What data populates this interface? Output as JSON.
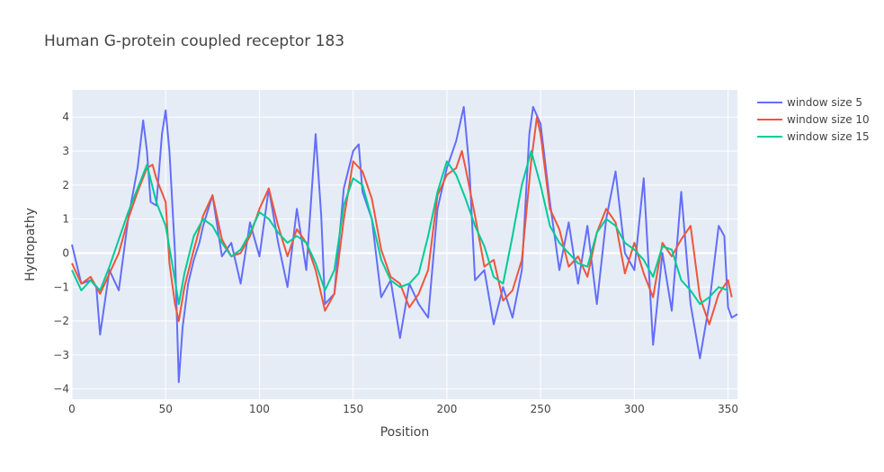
{
  "chart_data": {
    "type": "line",
    "title": "Human G-protein coupled receptor 183",
    "xlabel": "Position",
    "ylabel": "Hydropathy",
    "xlim": [
      0,
      355
    ],
    "ylim": [
      -4.3,
      4.8
    ],
    "xticks": [
      0,
      50,
      100,
      150,
      200,
      250,
      300,
      350
    ],
    "yticks": [
      -4,
      -3,
      -2,
      -1,
      0,
      1,
      2,
      3,
      4
    ],
    "grid": true,
    "legend_position": "top-right",
    "series": [
      {
        "name": "window size 5",
        "color": "#636efa",
        "x": [
          0,
          5,
          10,
          13,
          15,
          20,
          25,
          30,
          35,
          38,
          40,
          42,
          45,
          48,
          50,
          52,
          55,
          57,
          59,
          62,
          65,
          68,
          70,
          75,
          80,
          85,
          90,
          95,
          100,
          105,
          110,
          115,
          120,
          125,
          130,
          133,
          135,
          140,
          145,
          150,
          153,
          155,
          160,
          165,
          170,
          175,
          180,
          185,
          190,
          195,
          200,
          205,
          209,
          212,
          215,
          220,
          225,
          230,
          235,
          240,
          244,
          246,
          250,
          255,
          260,
          265,
          270,
          275,
          280,
          285,
          290,
          295,
          300,
          305,
          310,
          315,
          320,
          325,
          330,
          335,
          340,
          345,
          348,
          350,
          352,
          355
        ],
        "y": [
          0.25,
          -0.9,
          -0.8,
          -1.0,
          -2.4,
          -0.5,
          -1.1,
          1.0,
          2.5,
          3.9,
          3.0,
          1.5,
          1.4,
          3.5,
          4.2,
          3.0,
          0.0,
          -3.8,
          -2.2,
          -0.9,
          -0.2,
          0.3,
          0.8,
          1.7,
          -0.1,
          0.3,
          -0.9,
          0.9,
          -0.1,
          1.9,
          0.3,
          -1.0,
          1.3,
          -0.5,
          3.5,
          1.1,
          -1.5,
          -1.2,
          1.9,
          3.0,
          3.2,
          1.8,
          1.0,
          -1.3,
          -0.8,
          -2.5,
          -0.9,
          -1.5,
          -1.9,
          1.3,
          2.5,
          3.3,
          4.3,
          2.5,
          -0.8,
          -0.5,
          -2.1,
          -1.0,
          -1.9,
          -0.5,
          3.5,
          4.3,
          3.8,
          1.5,
          -0.5,
          0.9,
          -0.9,
          0.8,
          -1.5,
          1.0,
          2.4,
          0.0,
          -0.5,
          2.2,
          -2.7,
          0.0,
          -1.7,
          1.8,
          -1.5,
          -3.1,
          -1.5,
          0.8,
          0.5,
          -1.6,
          -1.9,
          -1.8
        ]
      },
      {
        "name": "window size 10",
        "color": "#ef553b",
        "x": [
          0,
          5,
          10,
          15,
          20,
          25,
          30,
          35,
          40,
          43,
          45,
          50,
          52,
          55,
          57,
          60,
          65,
          70,
          75,
          80,
          85,
          90,
          95,
          100,
          105,
          110,
          115,
          120,
          125,
          130,
          135,
          140,
          145,
          150,
          155,
          160,
          165,
          170,
          175,
          180,
          185,
          190,
          195,
          200,
          205,
          208,
          210,
          215,
          220,
          225,
          230,
          235,
          240,
          245,
          248,
          250,
          255,
          260,
          265,
          270,
          275,
          280,
          285,
          290,
          295,
          300,
          305,
          310,
          315,
          320,
          325,
          330,
          335,
          340,
          345,
          350,
          352
        ],
        "y": [
          -0.3,
          -0.9,
          -0.7,
          -1.2,
          -0.6,
          0.0,
          1.0,
          1.8,
          2.5,
          2.6,
          2.2,
          1.5,
          -0.3,
          -1.5,
          -2.0,
          -1.0,
          0.1,
          1.1,
          1.7,
          0.4,
          -0.1,
          0.0,
          0.5,
          1.3,
          1.9,
          0.8,
          -0.1,
          0.7,
          0.3,
          -0.5,
          -1.7,
          -1.2,
          1.0,
          2.7,
          2.4,
          1.6,
          0.1,
          -0.7,
          -0.9,
          -1.6,
          -1.2,
          -0.5,
          1.7,
          2.3,
          2.5,
          3.0,
          2.5,
          1.1,
          -0.4,
          -0.2,
          -1.4,
          -1.1,
          -0.2,
          2.7,
          4.0,
          3.5,
          1.3,
          0.7,
          -0.4,
          -0.1,
          -0.7,
          0.6,
          1.3,
          0.9,
          -0.6,
          0.3,
          -0.6,
          -1.3,
          0.3,
          -0.1,
          0.4,
          0.8,
          -1.3,
          -2.1,
          -1.2,
          -0.8,
          -1.3
        ]
      },
      {
        "name": "window size 15",
        "color": "#00cc96",
        "x": [
          0,
          5,
          10,
          15,
          20,
          25,
          30,
          35,
          40,
          45,
          50,
          55,
          57,
          60,
          65,
          70,
          75,
          80,
          85,
          90,
          95,
          100,
          105,
          110,
          115,
          120,
          125,
          130,
          135,
          140,
          145,
          150,
          155,
          160,
          165,
          170,
          175,
          180,
          185,
          190,
          195,
          200,
          205,
          210,
          215,
          220,
          225,
          230,
          235,
          240,
          245,
          250,
          255,
          260,
          265,
          270,
          275,
          280,
          285,
          290,
          295,
          300,
          305,
          310,
          315,
          320,
          325,
          330,
          335,
          340,
          345,
          350
        ],
        "y": [
          -0.5,
          -1.1,
          -0.8,
          -1.1,
          -0.4,
          0.4,
          1.2,
          1.9,
          2.6,
          1.5,
          0.8,
          -0.8,
          -1.5,
          -0.6,
          0.5,
          1.0,
          0.8,
          0.3,
          -0.1,
          0.1,
          0.6,
          1.2,
          1.0,
          0.6,
          0.3,
          0.5,
          0.3,
          -0.3,
          -1.1,
          -0.5,
          1.4,
          2.2,
          2.0,
          1.0,
          -0.2,
          -0.8,
          -1.0,
          -0.9,
          -0.6,
          0.5,
          1.8,
          2.7,
          2.3,
          1.6,
          0.8,
          0.2,
          -0.7,
          -0.9,
          0.5,
          2.0,
          3.0,
          2.0,
          0.8,
          0.3,
          0.0,
          -0.3,
          -0.4,
          0.6,
          1.0,
          0.8,
          0.3,
          0.1,
          -0.2,
          -0.7,
          0.2,
          0.1,
          -0.8,
          -1.1,
          -1.5,
          -1.3,
          -1.0,
          -1.1
        ]
      }
    ]
  }
}
